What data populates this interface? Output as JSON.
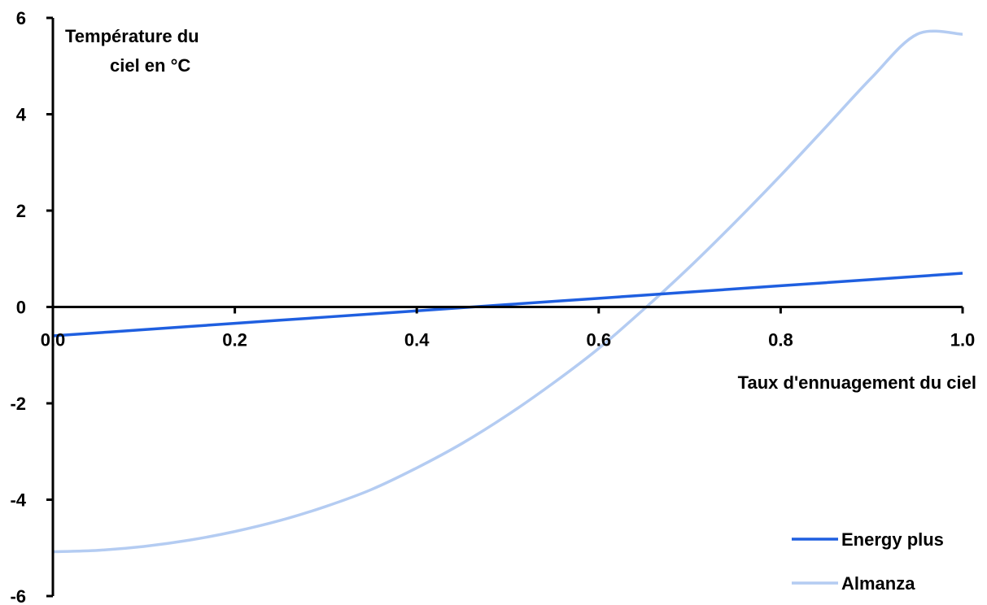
{
  "chart_data": {
    "type": "line",
    "title": "",
    "xlabel": "Taux d'ennuagement du ciel",
    "ylabel_lines": [
      "Température du",
      "ciel en °C"
    ],
    "xlim": [
      0.0,
      1.0
    ],
    "ylim": [
      -6,
      6
    ],
    "x_ticks": [
      0.0,
      0.2,
      0.4,
      0.6,
      0.8,
      1.0
    ],
    "x_tick_labels": [
      "0.0",
      "0.2",
      "0.4",
      "0.6",
      "0.8",
      "1.0"
    ],
    "y_ticks": [
      -6,
      -4,
      -2,
      0,
      2,
      4,
      6
    ],
    "y_tick_labels": [
      "-6",
      "-4",
      "-2",
      "0",
      "2",
      "4",
      "6"
    ],
    "grid": false,
    "legend_position": "bottom-right",
    "series": [
      {
        "name": "Energy plus",
        "color": "#1f5fe0",
        "x": [
          0.0,
          0.1,
          0.2,
          0.3,
          0.4,
          0.5,
          0.6,
          0.7,
          0.8,
          0.9,
          1.0
        ],
        "y": [
          -0.6,
          -0.47,
          -0.34,
          -0.21,
          -0.08,
          0.05,
          0.18,
          0.31,
          0.44,
          0.57,
          0.7
        ]
      },
      {
        "name": "Almanza",
        "color": "#b4ccf2",
        "x": [
          0.0,
          0.05,
          0.1,
          0.15,
          0.2,
          0.25,
          0.3,
          0.35,
          0.4,
          0.45,
          0.5,
          0.55,
          0.6,
          0.65,
          0.7,
          0.75,
          0.8,
          0.85,
          0.9,
          0.95,
          1.0
        ],
        "y": [
          -5.08,
          -5.05,
          -4.97,
          -4.84,
          -4.66,
          -4.43,
          -4.14,
          -3.79,
          -3.34,
          -2.83,
          -2.24,
          -1.58,
          -0.86,
          -0.04,
          0.83,
          1.76,
          2.73,
          3.74,
          4.76,
          5.66,
          5.66
        ]
      }
    ]
  }
}
